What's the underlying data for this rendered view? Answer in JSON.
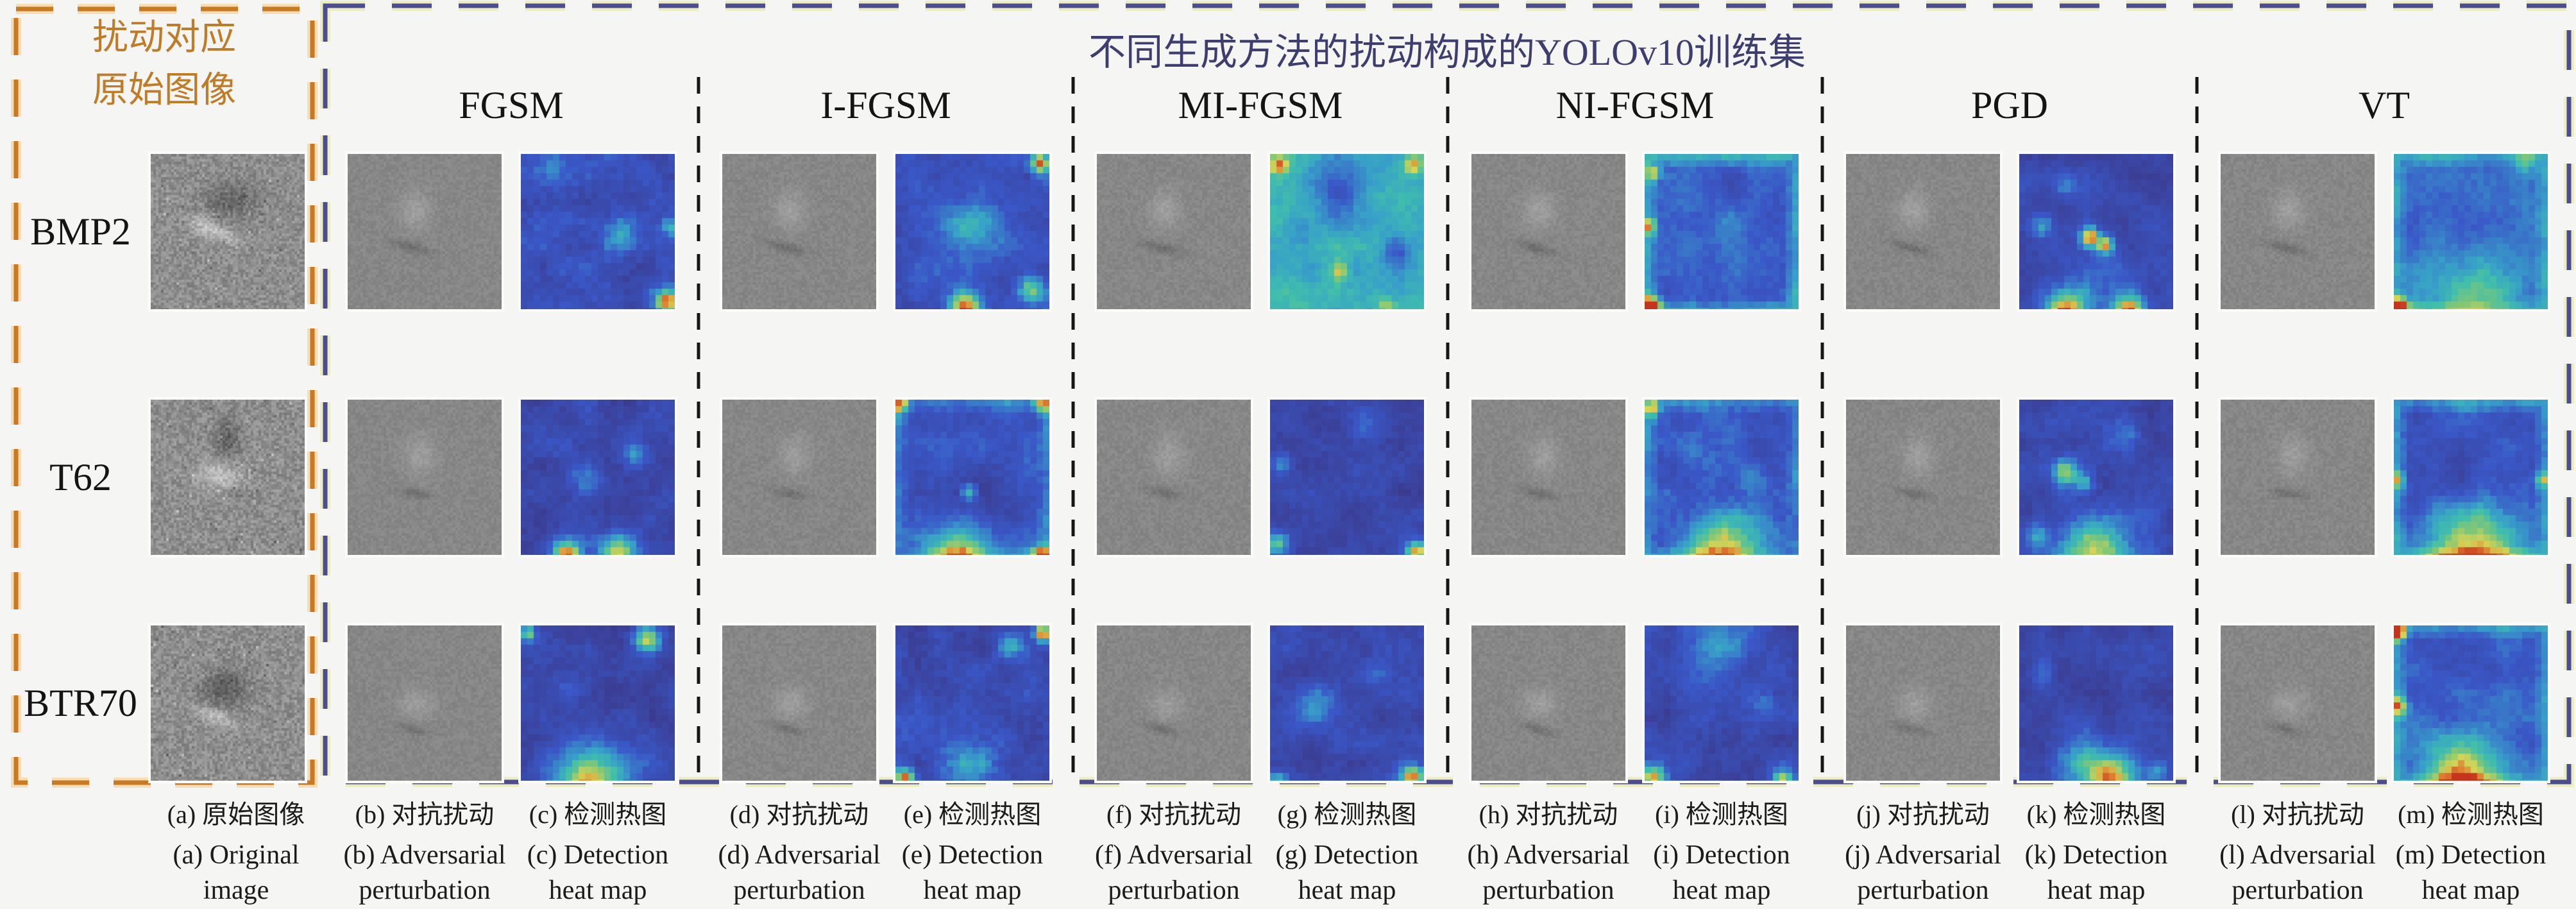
{
  "figure": {
    "background": "#f5f5f4",
    "text_color": "#1b1b1b",
    "left_panel": {
      "title_lines": [
        "扰动对应",
        "原始图像"
      ],
      "title_color": "#bf7c28",
      "border_color": "#c87922",
      "border_glow": "#f6ddb6",
      "rows": [
        "BMP2",
        "T62",
        "BTR70"
      ]
    },
    "main_panel": {
      "title": "不同生成方法的扰动构成的YOLOv10训练集",
      "title_color": "#3d3d70",
      "border_color": "#4c4c90",
      "border_glow": "#ededc2",
      "separator_color": "#161616",
      "methods": [
        "FGSM",
        "I-FGSM",
        "MI-FGSM",
        "NI-FGSM",
        "PGD",
        "VT"
      ]
    },
    "captions": [
      {
        "zh": "(a) 原始图像",
        "en1": "(a) Original",
        "en2": "image"
      },
      {
        "zh": "(b) 对抗扰动",
        "en1": "(b) Adversarial",
        "en2": "perturbation"
      },
      {
        "zh": "(c) 检测热图",
        "en1": "(c) Detection",
        "en2": "heat map"
      },
      {
        "zh": "(d) 对抗扰动",
        "en1": "(d) Adversarial",
        "en2": "perturbation"
      },
      {
        "zh": "(e) 检测热图",
        "en1": "(e) Detection",
        "en2": "heat map"
      },
      {
        "zh": "(f) 对抗扰动",
        "en1": "(f) Adversarial",
        "en2": "perturbation"
      },
      {
        "zh": "(g) 检测热图",
        "en1": "(g) Detection",
        "en2": "heat map"
      },
      {
        "zh": "(h) 对抗扰动",
        "en1": "(h) Adversarial",
        "en2": "perturbation"
      },
      {
        "zh": "(i) 检测热图",
        "en1": "(i) Detection",
        "en2": "heat map"
      },
      {
        "zh": "(j) 对抗扰动",
        "en1": "(j) Adversarial",
        "en2": "perturbation"
      },
      {
        "zh": "(k) 检测热图",
        "en1": "(k) Detection",
        "en2": "heat map"
      },
      {
        "zh": "(l) 对抗扰动",
        "en1": "(l) Adversarial",
        "en2": "perturbation"
      },
      {
        "zh": "(m) 检测热图",
        "en1": "(m) Detection",
        "en2": "heat map"
      }
    ]
  },
  "artwork": {
    "gray_original": {
      "base": 142,
      "noise": 22,
      "speckle": true,
      "seeds": [
        101,
        102,
        103
      ]
    },
    "gray_perturb": {
      "base": 135,
      "noise": 8,
      "speckle": false
    },
    "original_features": [
      [
        [
          0.52,
          0.3,
          0.17,
          0.12,
          0,
          -40
        ],
        [
          0.42,
          0.5,
          0.15,
          0.05,
          -18,
          52
        ],
        [
          0.33,
          0.42,
          0.07,
          0.05,
          0,
          26
        ]
      ],
      [
        [
          0.5,
          0.26,
          0.08,
          0.15,
          0,
          -42
        ],
        [
          0.46,
          0.48,
          0.14,
          0.1,
          0,
          50
        ],
        [
          0.56,
          0.6,
          0.08,
          0.04,
          -12,
          -20
        ]
      ],
      [
        [
          0.48,
          0.4,
          0.16,
          0.12,
          10,
          -46
        ],
        [
          0.42,
          0.58,
          0.14,
          0.05,
          -20,
          48
        ]
      ]
    ],
    "perturb_features": [
      [
        [
          0.44,
          0.36,
          0.1,
          0.12,
          0,
          24
        ],
        [
          0.42,
          0.6,
          0.13,
          0.03,
          -15,
          -26
        ]
      ],
      [
        [
          0.47,
          0.36,
          0.1,
          0.13,
          0,
          22
        ],
        [
          0.44,
          0.6,
          0.11,
          0.03,
          -10,
          -24
        ]
      ],
      [
        [
          0.45,
          0.5,
          0.11,
          0.1,
          0,
          22
        ],
        [
          0.42,
          0.66,
          0.11,
          0.03,
          -15,
          -22
        ]
      ]
    ],
    "heatmaps": [
      [
        {
          "base": 0.18,
          "var": 0.11,
          "seed": 11,
          "ring": 0,
          "spots": [
            [
              0.65,
              0.5,
              0.12,
              0.3
            ],
            [
              0.95,
              0.92,
              0.08,
              0.85
            ],
            [
              0.97,
              0.45,
              0.07,
              0.38
            ],
            [
              0.2,
              0.1,
              0.12,
              0.2
            ],
            [
              0.5,
              0.3,
              0.15,
              -0.08
            ]
          ]
        },
        {
          "base": 0.13,
          "var": 0.1,
          "seed": 12,
          "ring": 0,
          "spots": [
            [
              0.3,
              0.97,
              0.1,
              0.8
            ],
            [
              0.62,
              0.96,
              0.12,
              0.75
            ],
            [
              0.42,
              0.48,
              0.1,
              0.3
            ],
            [
              0.75,
              0.35,
              0.08,
              0.28
            ]
          ]
        },
        {
          "base": 0.11,
          "var": 0.09,
          "seed": 13,
          "ring": 0,
          "spots": [
            [
              0.82,
              0.08,
              0.09,
              0.7
            ],
            [
              0.05,
              0.05,
              0.05,
              0.55
            ],
            [
              0.45,
              0.98,
              0.25,
              0.75
            ],
            [
              0.3,
              0.4,
              0.1,
              0.2
            ]
          ]
        }
      ],
      [
        {
          "base": 0.2,
          "var": 0.1,
          "seed": 21,
          "ring": 0,
          "spots": [
            [
              0.5,
              0.45,
              0.18,
              0.3
            ],
            [
              0.94,
              0.06,
              0.06,
              0.75
            ],
            [
              0.45,
              0.97,
              0.1,
              0.85
            ],
            [
              0.88,
              0.85,
              0.08,
              0.45
            ]
          ]
        },
        {
          "base": 0.24,
          "var": 0.09,
          "seed": 22,
          "ring": 0.18,
          "spots": [
            [
              0.5,
              0.62,
              0.22,
              -0.16
            ],
            [
              0.48,
              0.58,
              0.05,
              0.5
            ],
            [
              0.4,
              0.98,
              0.2,
              0.6
            ],
            [
              0.95,
              0.97,
              0.06,
              0.85
            ],
            [
              0.03,
              0.03,
              0.05,
              0.6
            ],
            [
              0.96,
              0.03,
              0.05,
              0.6
            ]
          ]
        },
        {
          "base": 0.14,
          "var": 0.1,
          "seed": 23,
          "ring": 0,
          "spots": [
            [
              0.96,
              0.05,
              0.05,
              0.85
            ],
            [
              0.5,
              0.9,
              0.2,
              0.3
            ],
            [
              0.06,
              0.96,
              0.07,
              0.8
            ],
            [
              0.75,
              0.12,
              0.08,
              0.3
            ]
          ]
        }
      ],
      [
        {
          "base": 0.5,
          "var": 0.07,
          "seed": 31,
          "ring": 0,
          "spots": [
            [
              0.45,
              0.22,
              0.17,
              -0.28
            ],
            [
              0.82,
              0.6,
              0.09,
              -0.3
            ],
            [
              0.06,
              0.07,
              0.06,
              0.42
            ],
            [
              0.93,
              0.07,
              0.06,
              0.38
            ],
            [
              0.45,
              0.73,
              0.05,
              0.28
            ],
            [
              0.75,
              0.95,
              0.06,
              0.25
            ],
            [
              0.2,
              0.5,
              0.1,
              -0.1
            ]
          ]
        },
        {
          "base": 0.1,
          "var": 0.08,
          "seed": 32,
          "ring": 0,
          "spots": [
            [
              0.95,
              0.95,
              0.07,
              0.8
            ],
            [
              0.08,
              0.4,
              0.07,
              0.3
            ],
            [
              0.05,
              0.9,
              0.07,
              0.55
            ],
            [
              0.6,
              0.15,
              0.1,
              0.25
            ]
          ]
        },
        {
          "base": 0.12,
          "var": 0.09,
          "seed": 33,
          "ring": 0,
          "spots": [
            [
              0.92,
              0.94,
              0.08,
              0.75
            ],
            [
              0.3,
              0.5,
              0.12,
              0.28
            ],
            [
              0.7,
              0.3,
              0.08,
              0.2
            ],
            [
              0.05,
              0.97,
              0.06,
              0.5
            ]
          ]
        }
      ],
      [
        {
          "base": 0.27,
          "var": 0.08,
          "seed": 41,
          "ring": 0.26,
          "spots": [
            [
              0.04,
              0.95,
              0.07,
              0.75
            ],
            [
              0.03,
              0.45,
              0.05,
              0.5
            ],
            [
              0.05,
              0.12,
              0.05,
              0.45
            ],
            [
              0.5,
              0.45,
              0.15,
              0.1
            ],
            [
              0.6,
              0.2,
              0.1,
              -0.12
            ]
          ]
        },
        {
          "base": 0.23,
          "var": 0.1,
          "seed": 42,
          "ring": 0.18,
          "spots": [
            [
              0.5,
              0.98,
              0.25,
              0.65
            ],
            [
              0.3,
              0.3,
              0.1,
              0.22
            ],
            [
              0.7,
              0.5,
              0.1,
              0.25
            ],
            [
              0.05,
              0.05,
              0.05,
              0.5
            ]
          ]
        },
        {
          "base": 0.12,
          "var": 0.09,
          "seed": 43,
          "ring": 0,
          "spots": [
            [
              0.5,
              0.06,
              0.28,
              0.28
            ],
            [
              0.05,
              0.95,
              0.08,
              0.8
            ],
            [
              0.8,
              0.5,
              0.08,
              0.18
            ],
            [
              0.9,
              0.97,
              0.07,
              0.6
            ]
          ]
        }
      ],
      [
        {
          "base": 0.12,
          "var": 0.08,
          "seed": 51,
          "ring": 0,
          "spots": [
            [
              0.46,
              0.52,
              0.06,
              0.8
            ],
            [
              0.56,
              0.57,
              0.05,
              0.7
            ],
            [
              0.3,
              0.2,
              0.08,
              0.28
            ],
            [
              0.3,
              0.99,
              0.12,
              0.75
            ],
            [
              0.72,
              0.99,
              0.1,
              0.78
            ],
            [
              0.5,
              0.9,
              0.3,
              0.2
            ],
            [
              0.15,
              0.45,
              0.07,
              0.3
            ]
          ]
        },
        {
          "base": 0.13,
          "var": 0.09,
          "seed": 52,
          "ring": 0,
          "spots": [
            [
              0.3,
              0.45,
              0.08,
              0.55
            ],
            [
              0.42,
              0.52,
              0.06,
              0.4
            ],
            [
              0.5,
              0.98,
              0.25,
              0.7
            ],
            [
              0.7,
              0.2,
              0.09,
              0.22
            ],
            [
              0.1,
              0.85,
              0.08,
              0.3
            ]
          ]
        },
        {
          "base": 0.1,
          "var": 0.08,
          "seed": 53,
          "ring": 0,
          "spots": [
            [
              0.4,
              0.85,
              0.2,
              0.28
            ],
            [
              0.6,
              0.99,
              0.18,
              0.75
            ],
            [
              0.15,
              0.3,
              0.08,
              0.16
            ],
            [
              0.9,
              0.9,
              0.07,
              0.3
            ]
          ]
        }
      ],
      [
        {
          "base": 0.3,
          "var": 0.07,
          "seed": 61,
          "ring": 0.2,
          "spots": [
            [
              0.5,
              0.92,
              0.35,
              0.3
            ],
            [
              0.03,
              0.96,
              0.06,
              0.8
            ],
            [
              0.85,
              0.05,
              0.08,
              0.25
            ],
            [
              0.45,
              0.45,
              0.2,
              -0.12
            ]
          ]
        },
        {
          "base": 0.18,
          "var": 0.08,
          "seed": 62,
          "ring": 0.26,
          "spots": [
            [
              0.02,
              0.5,
              0.05,
              0.45
            ],
            [
              0.97,
              0.5,
              0.05,
              0.45
            ],
            [
              0.5,
              0.99,
              0.35,
              0.7
            ],
            [
              0.5,
              0.08,
              0.2,
              0.15
            ],
            [
              0.45,
              0.5,
              0.2,
              -0.1
            ]
          ]
        },
        {
          "base": 0.26,
          "var": 0.08,
          "seed": 63,
          "ring": 0.22,
          "spots": [
            [
              0.03,
              0.5,
              0.06,
              0.5
            ],
            [
              0.45,
              0.98,
              0.25,
              0.75
            ],
            [
              0.03,
              0.04,
              0.05,
              0.8
            ],
            [
              0.6,
              0.3,
              0.1,
              -0.14
            ],
            [
              0.3,
              0.55,
              0.1,
              -0.12
            ]
          ]
        }
      ]
    ]
  }
}
